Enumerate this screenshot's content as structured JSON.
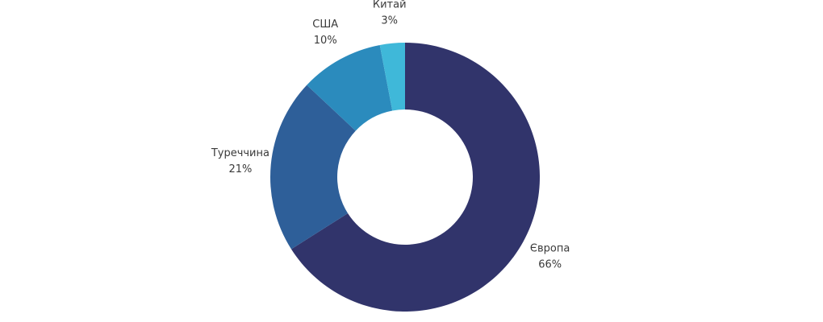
{
  "chart_data": {
    "type": "donut",
    "categories": [
      "Європа",
      "Туреччина",
      "США",
      "Китай"
    ],
    "values": [
      66,
      21,
      10,
      3
    ],
    "value_labels": [
      "66%",
      "21%",
      "10%",
      "3%"
    ],
    "colors": [
      "#31346b",
      "#2e5f99",
      "#2b8bbd",
      "#3fb8d9"
    ]
  }
}
